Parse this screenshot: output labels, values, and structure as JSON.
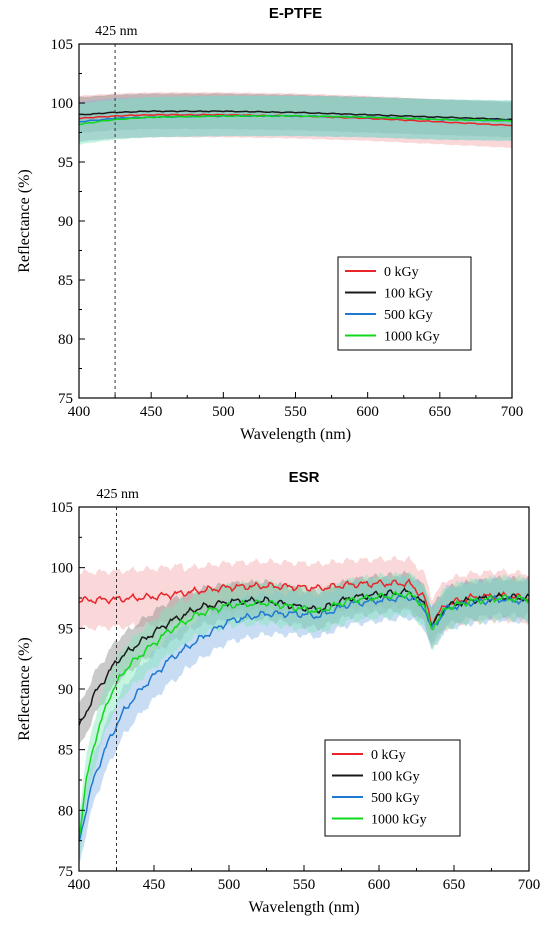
{
  "chart_data": [
    {
      "type": "line",
      "title": "E-PTFE",
      "xlabel": "Wavelength (nm)",
      "ylabel": "Reflectance (%)",
      "xlim": [
        400,
        700
      ],
      "ylim": [
        75,
        105
      ],
      "xticks": [
        400,
        450,
        500,
        550,
        600,
        650,
        700
      ],
      "yticks": [
        75,
        80,
        85,
        90,
        95,
        100,
        105
      ],
      "reference_line": {
        "x": 425,
        "label": "425 nm"
      },
      "legend_position": "center-right",
      "series": [
        {
          "name": "0 kGy",
          "color": "#e8262a",
          "band_color": "#f4a6a8",
          "x": [
            400,
            425,
            450,
            500,
            550,
            600,
            650,
            700
          ],
          "y": [
            98.7,
            98.9,
            99.0,
            99.0,
            98.9,
            98.7,
            98.4,
            98.1
          ],
          "band": 1.9
        },
        {
          "name": "100 kGy",
          "color": "#1a1a1a",
          "band_color": "#8a8a8a",
          "x": [
            400,
            425,
            450,
            500,
            550,
            600,
            650,
            700
          ],
          "y": [
            99.0,
            99.2,
            99.3,
            99.3,
            99.2,
            99.0,
            98.8,
            98.6
          ],
          "band": 1.5
        },
        {
          "name": "500 kGy",
          "color": "#1f78d1",
          "band_color": "#86b4e6",
          "x": [
            400,
            425,
            450,
            500,
            550,
            600,
            650,
            700
          ],
          "y": [
            98.4,
            98.7,
            98.8,
            98.9,
            98.9,
            98.8,
            98.6,
            98.5
          ],
          "band": 1.7
        },
        {
          "name": "1000 kGy",
          "color": "#10d81d",
          "band_color": "#7fe6b8",
          "x": [
            400,
            425,
            450,
            500,
            550,
            600,
            650,
            700
          ],
          "y": [
            98.2,
            98.6,
            98.8,
            98.9,
            98.9,
            98.8,
            98.6,
            98.5
          ],
          "band": 1.7
        }
      ]
    },
    {
      "type": "line",
      "title": "ESR",
      "xlabel": "Wavelength (nm)",
      "ylabel": "Reflectance (%)",
      "xlim": [
        400,
        700
      ],
      "ylim": [
        75,
        105
      ],
      "xticks": [
        400,
        450,
        500,
        550,
        600,
        650,
        700
      ],
      "yticks": [
        75,
        80,
        85,
        90,
        95,
        100,
        105
      ],
      "reference_line": {
        "x": 425,
        "label": "425 nm"
      },
      "legend_position": "lower-center",
      "series": [
        {
          "name": "0 kGy",
          "color": "#e8262a",
          "band_color": "#f4a6a8",
          "x": [
            400,
            425,
            450,
            475,
            500,
            525,
            545,
            560,
            580,
            600,
            620,
            630,
            635,
            645,
            660,
            680,
            700
          ],
          "y": [
            97.3,
            97.4,
            97.6,
            98.0,
            98.4,
            98.5,
            98.4,
            98.3,
            98.6,
            98.7,
            98.7,
            97.6,
            95.5,
            97.0,
            97.5,
            97.7,
            97.5
          ],
          "band": 2.0
        },
        {
          "name": "100 kGy",
          "color": "#1a1a1a",
          "band_color": "#8a8a8a",
          "x": [
            400,
            410,
            425,
            440,
            460,
            480,
            500,
            525,
            545,
            560,
            580,
            600,
            620,
            630,
            635,
            645,
            660,
            680,
            700
          ],
          "y": [
            86.8,
            89.5,
            92.3,
            93.8,
            95.5,
            96.7,
            97.2,
            97.3,
            96.8,
            96.5,
            97.5,
            97.8,
            98.0,
            97.0,
            95.2,
            96.8,
            97.3,
            97.6,
            97.5
          ],
          "band": 1.5
        },
        {
          "name": "500 kGy",
          "color": "#1f78d1",
          "band_color": "#86b4e6",
          "x": [
            400,
            405,
            410,
            420,
            430,
            440,
            460,
            480,
            500,
            525,
            545,
            560,
            580,
            600,
            620,
            630,
            635,
            645,
            660,
            680,
            700
          ],
          "y": [
            77.4,
            80.2,
            82.7,
            85.8,
            88.2,
            89.8,
            92.4,
            94.1,
            95.6,
            96.2,
            96.2,
            96.0,
            97.0,
            97.3,
            97.6,
            96.8,
            94.9,
            96.6,
            97.1,
            97.4,
            97.2
          ],
          "band": 1.7
        },
        {
          "name": "1000 kGy",
          "color": "#10d81d",
          "band_color": "#7fe6b8",
          "x": [
            400,
            405,
            410,
            420,
            430,
            440,
            460,
            480,
            500,
            525,
            545,
            560,
            580,
            600,
            620,
            630,
            635,
            645,
            660,
            680,
            700
          ],
          "y": [
            77.8,
            82.5,
            85.5,
            89.3,
            91.5,
            92.7,
            94.8,
            96.2,
            96.9,
            97.1,
            96.7,
            96.4,
            97.3,
            97.6,
            97.8,
            96.9,
            95.0,
            96.7,
            97.2,
            97.5,
            97.4
          ],
          "band": 1.7
        }
      ]
    }
  ]
}
